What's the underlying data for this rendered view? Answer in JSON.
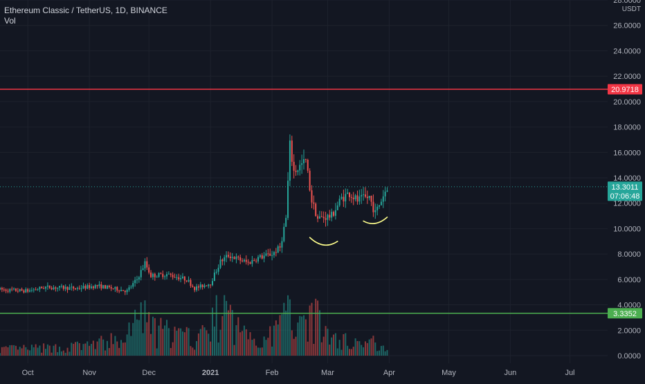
{
  "header": {
    "symbol_line": "Ethereum Classic / TetherUS, 1D, BINANCE",
    "volume_label": "Vol"
  },
  "colors": {
    "background": "#131722",
    "up": "#26a69a",
    "down": "#ef5350",
    "axis_text": "#b2b5be",
    "grid": "#1e222d",
    "resistance_line": "#f23645",
    "support_line": "#4caf50",
    "annotation": "#ffff8d"
  },
  "price_axis": {
    "currency": "USDT",
    "ticks": [
      "28.0000",
      "26.0000",
      "24.0000",
      "22.0000",
      "20.0000",
      "18.0000",
      "16.0000",
      "14.0000",
      "12.0000",
      "10.0000",
      "8.0000",
      "6.0000",
      "4.0000",
      "2.0000",
      "0.0000"
    ]
  },
  "price_badges": {
    "resistance": "20.9718",
    "last": "13.3011",
    "countdown": "07:06:48",
    "support": "3.3352"
  },
  "chart_data": {
    "type": "candlestick",
    "symbol": "Ethereum Classic / TetherUS",
    "interval": "1D",
    "exchange": "BINANCE",
    "x_range": [
      "2020-09-17",
      "2021-07-20"
    ],
    "ylim": [
      -0.6,
      28
    ],
    "x_tick_labels": [
      {
        "label": "Oct",
        "date": "2020-10-01"
      },
      {
        "label": "Nov",
        "date": "2020-11-01"
      },
      {
        "label": "Dec",
        "date": "2020-12-01"
      },
      {
        "label": "2021",
        "date": "2021-01-01"
      },
      {
        "label": "Feb",
        "date": "2021-02-01"
      },
      {
        "label": "Mar",
        "date": "2021-03-01"
      },
      {
        "label": "Apr",
        "date": "2021-04-01"
      },
      {
        "label": "May",
        "date": "2021-05-01"
      },
      {
        "label": "Jun",
        "date": "2021-06-01"
      },
      {
        "label": "Jul",
        "date": "2021-07-01"
      }
    ],
    "horizontal_lines": [
      {
        "name": "resistance",
        "price": 20.9718,
        "color": "#f23645"
      },
      {
        "name": "support",
        "price": 3.3352,
        "color": "#4caf50"
      }
    ],
    "last_price": 13.3011,
    "volume_unit": "price-axis",
    "price_anchors": [
      {
        "date": "2020-09-17",
        "close": 5.2
      },
      {
        "date": "2020-10-01",
        "close": 5.1
      },
      {
        "date": "2020-10-10",
        "close": 5.4
      },
      {
        "date": "2020-10-25",
        "close": 5.3
      },
      {
        "date": "2020-11-05",
        "close": 5.5
      },
      {
        "date": "2020-11-20",
        "close": 5.1
      },
      {
        "date": "2020-11-25",
        "close": 6.0
      },
      {
        "date": "2020-11-29",
        "close": 7.3
      },
      {
        "date": "2020-12-02",
        "close": 6.3
      },
      {
        "date": "2020-12-10",
        "close": 6.4
      },
      {
        "date": "2020-12-20",
        "close": 6.0
      },
      {
        "date": "2020-12-24",
        "close": 5.3
      },
      {
        "date": "2021-01-01",
        "close": 5.7
      },
      {
        "date": "2021-01-06",
        "close": 7.4
      },
      {
        "date": "2021-01-10",
        "close": 7.9
      },
      {
        "date": "2021-01-20",
        "close": 7.3
      },
      {
        "date": "2021-01-25",
        "close": 7.7
      },
      {
        "date": "2021-02-01",
        "close": 8.0
      },
      {
        "date": "2021-02-05",
        "close": 8.5
      },
      {
        "date": "2021-02-08",
        "close": 10.8
      },
      {
        "date": "2021-02-10",
        "close": 16.5
      },
      {
        "date": "2021-02-12",
        "close": 14.5
      },
      {
        "date": "2021-02-18",
        "close": 15.3
      },
      {
        "date": "2021-02-21",
        "close": 12.2
      },
      {
        "date": "2021-02-24",
        "close": 10.8
      },
      {
        "date": "2021-03-03",
        "close": 11.0
      },
      {
        "date": "2021-03-08",
        "close": 12.4
      },
      {
        "date": "2021-03-12",
        "close": 12.8
      },
      {
        "date": "2021-03-16",
        "close": 12.2
      },
      {
        "date": "2021-03-22",
        "close": 12.5
      },
      {
        "date": "2021-03-25",
        "close": 11.2
      },
      {
        "date": "2021-03-31",
        "close": 13.3
      }
    ],
    "volume_anchors": [
      {
        "date": "2020-09-17",
        "volume": 0.5
      },
      {
        "date": "2020-10-20",
        "volume": 0.6
      },
      {
        "date": "2020-11-20",
        "volume": 1.2
      },
      {
        "date": "2020-11-26",
        "volume": 3.5
      },
      {
        "date": "2020-12-02",
        "volume": 2.0
      },
      {
        "date": "2020-12-25",
        "volume": 1.2
      },
      {
        "date": "2021-01-07",
        "volume": 3.3
      },
      {
        "date": "2021-01-15",
        "volume": 2.0
      },
      {
        "date": "2021-01-30",
        "volume": 1.2
      },
      {
        "date": "2021-02-08",
        "volume": 3.0
      },
      {
        "date": "2021-02-12",
        "volume": 3.6
      },
      {
        "date": "2021-02-20",
        "volume": 3.2
      },
      {
        "date": "2021-03-05",
        "volume": 1.2
      },
      {
        "date": "2021-03-31",
        "volume": 0.9
      }
    ],
    "annotations": [
      {
        "type": "arc",
        "points": [
          {
            "date": "2021-02-20",
            "price": 9.3
          },
          {
            "date": "2021-02-27",
            "price": 8.6
          },
          {
            "date": "2021-03-06",
            "price": 9.0
          }
        ],
        "color": "#ffff8d"
      },
      {
        "type": "arc",
        "points": [
          {
            "date": "2021-03-19",
            "price": 10.6
          },
          {
            "date": "2021-03-25",
            "price": 10.4
          },
          {
            "date": "2021-03-31",
            "price": 10.9
          }
        ],
        "color": "#ffff8d"
      }
    ]
  }
}
